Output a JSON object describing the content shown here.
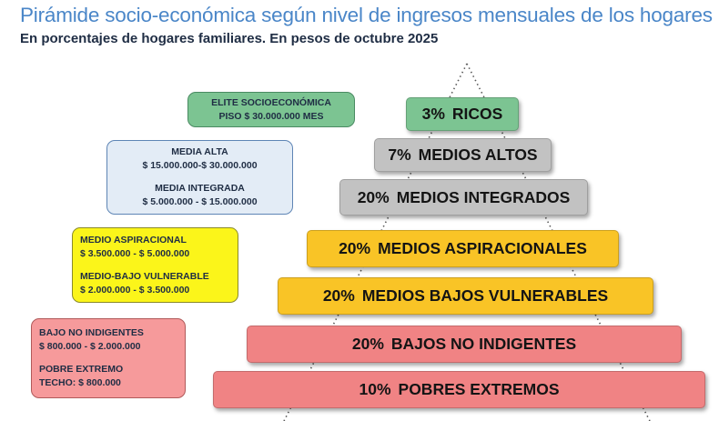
{
  "title": "Pirámide socio-económica según nivel de ingresos mensuales de los hogares",
  "subtitle": "En porcentajes de hogares familiares. En pesos de octubre 2025",
  "colors": {
    "title": "#4a86c8",
    "green": "#7cc492",
    "gray": "#c2c2c2",
    "orange": "#f9c426",
    "red": "#f08384",
    "box_green": "#7cc492",
    "box_blue": "#e3ecf6",
    "box_yellow": "#fbf51a",
    "box_pink": "#f69a9b"
  },
  "chart_data": {
    "type": "bar",
    "orientation": "pyramid",
    "categories": [
      "RICOS",
      "MEDIOS ALTOS",
      "MEDIOS INTEGRADOS",
      "MEDIOS ASPIRACIONALES",
      "MEDIOS BAJOS VULNERABLES",
      "BAJOS NO INDIGENTES",
      "POBRES EXTREMOS"
    ],
    "values": [
      3,
      7,
      20,
      20,
      20,
      20,
      10
    ],
    "value_labels": [
      "3%",
      "7%",
      "20%",
      "20%",
      "20%",
      "20%",
      "10%"
    ],
    "unit": "%",
    "colors": [
      "#7cc492",
      "#c2c2c2",
      "#c2c2c2",
      "#f9c426",
      "#f9c426",
      "#f08384",
      "#f08384"
    ]
  },
  "income_boxes": [
    {
      "lines": [
        {
          "text": "ELITE SOCIOECONÓMICA"
        },
        {
          "text": "PISO $ 30.000.000 MES"
        }
      ]
    },
    {
      "lines": [
        {
          "text": "MEDIA ALTA"
        },
        {
          "text": "$ 15.000.000-$ 30.000.000"
        },
        {
          "text": "MEDIA INTEGRADA"
        },
        {
          "text": "$ 5.000.000 - $ 15.000.000"
        }
      ]
    },
    {
      "lines": [
        {
          "text": "MEDIO ASPIRACIONAL"
        },
        {
          "text": "$ 3.500.000 - $ 5.000.000"
        },
        {
          "text": "MEDIO-BAJO VULNERABLE"
        },
        {
          "text": "$ 2.000.000 - $ 3.500.000"
        }
      ]
    },
    {
      "lines": [
        {
          "text": "BAJO NO INDIGENTES"
        },
        {
          "text": "$ 800.000 - $ 2.000.000"
        },
        {
          "text": "POBRE EXTREMO"
        },
        {
          "text": "TECHO: $ 800.000"
        }
      ]
    }
  ]
}
